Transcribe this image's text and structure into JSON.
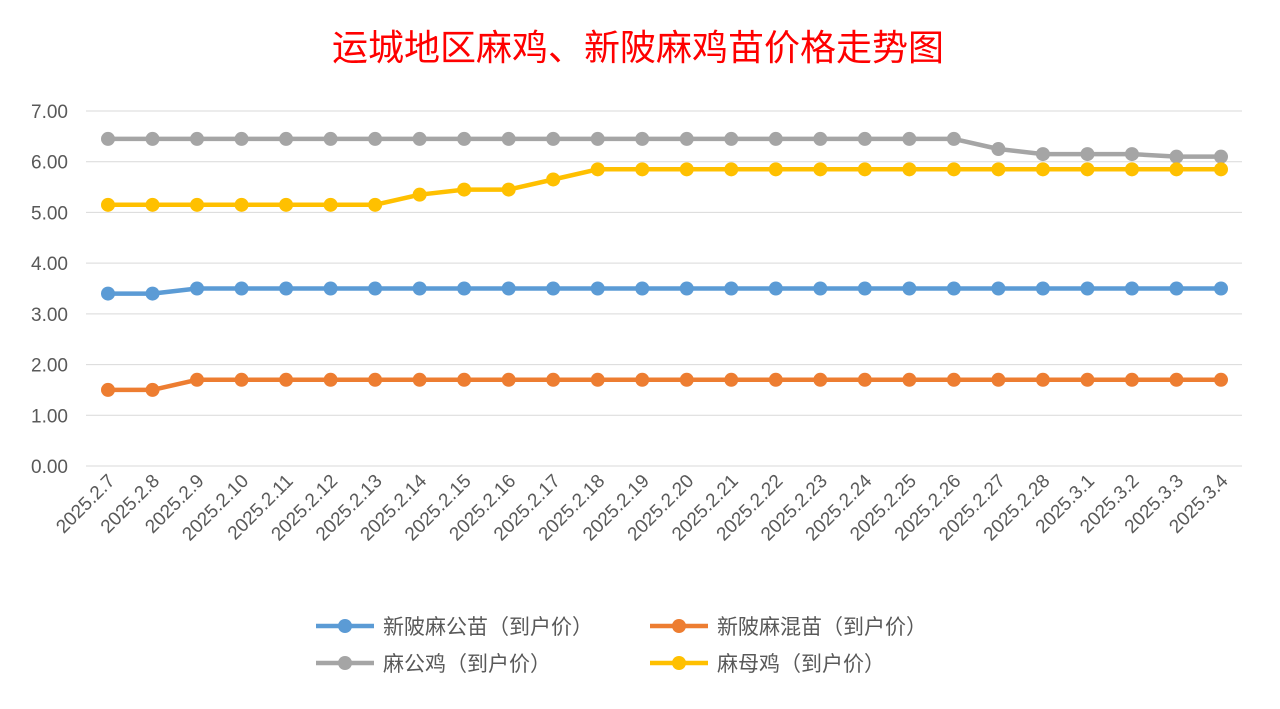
{
  "chart_data": {
    "type": "line",
    "title": "运城地区麻鸡、新陂麻鸡苗价格走势图",
    "xlabel": "",
    "ylabel": "",
    "ylim": [
      0,
      7
    ],
    "yticks": [
      "0.00",
      "1.00",
      "2.00",
      "3.00",
      "4.00",
      "5.00",
      "6.00",
      "7.00"
    ],
    "grid": true,
    "legend_position": "bottom",
    "categories": [
      "2025.2.7",
      "2025.2.8",
      "2025.2.9",
      "2025.2.10",
      "2025.2.11",
      "2025.2.12",
      "2025.2.13",
      "2025.2.14",
      "2025.2.15",
      "2025.2.16",
      "2025.2.17",
      "2025.2.18",
      "2025.2.19",
      "2025.2.20",
      "2025.2.21",
      "2025.2.22",
      "2025.2.23",
      "2025.2.24",
      "2025.2.25",
      "2025.2.26",
      "2025.2.27",
      "2025.2.28",
      "2025.3.1",
      "2025.3.2",
      "2025.3.3",
      "2025.3.4"
    ],
    "series": [
      {
        "name": "新陂麻公苗（到户价）",
        "color": "#5b9bd5",
        "values": [
          3.4,
          3.4,
          3.5,
          3.5,
          3.5,
          3.5,
          3.5,
          3.5,
          3.5,
          3.5,
          3.5,
          3.5,
          3.5,
          3.5,
          3.5,
          3.5,
          3.5,
          3.5,
          3.5,
          3.5,
          3.5,
          3.5,
          3.5,
          3.5,
          3.5,
          3.5
        ]
      },
      {
        "name": "新陂麻混苗（到户价）",
        "color": "#ed7d31",
        "values": [
          1.5,
          1.5,
          1.7,
          1.7,
          1.7,
          1.7,
          1.7,
          1.7,
          1.7,
          1.7,
          1.7,
          1.7,
          1.7,
          1.7,
          1.7,
          1.7,
          1.7,
          1.7,
          1.7,
          1.7,
          1.7,
          1.7,
          1.7,
          1.7,
          1.7,
          1.7
        ]
      },
      {
        "name": "麻公鸡（到户价）",
        "color": "#a5a5a5",
        "values": [
          6.45,
          6.45,
          6.45,
          6.45,
          6.45,
          6.45,
          6.45,
          6.45,
          6.45,
          6.45,
          6.45,
          6.45,
          6.45,
          6.45,
          6.45,
          6.45,
          6.45,
          6.45,
          6.45,
          6.45,
          6.25,
          6.15,
          6.15,
          6.15,
          6.1,
          6.1
        ]
      },
      {
        "name": "麻母鸡（到户价）",
        "color": "#ffc000",
        "values": [
          5.15,
          5.15,
          5.15,
          5.15,
          5.15,
          5.15,
          5.15,
          5.35,
          5.45,
          5.45,
          5.65,
          5.85,
          5.85,
          5.85,
          5.85,
          5.85,
          5.85,
          5.85,
          5.85,
          5.85,
          5.85,
          5.85,
          5.85,
          5.85,
          5.85,
          5.85
        ]
      }
    ]
  }
}
